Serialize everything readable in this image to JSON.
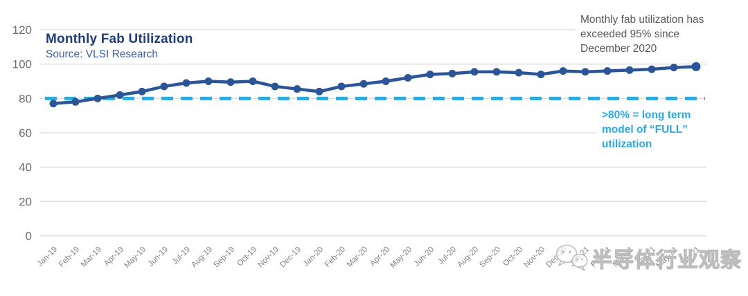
{
  "chart_data": {
    "type": "line",
    "title": "Monthly Fab Utilization",
    "subtitle": "Source: VLSI Research",
    "xlabel": "",
    "ylabel": "",
    "ylim": [
      0,
      120
    ],
    "yticks": [
      0,
      20,
      40,
      60,
      80,
      100,
      120
    ],
    "grid": "horizontal",
    "legend": "none",
    "categories": [
      "Jan-19",
      "Feb-19",
      "Mar-19",
      "Apr-19",
      "May-19",
      "Jun-19",
      "Jul-19",
      "Aug-19",
      "Sep-19",
      "Oct-19",
      "Nov-19",
      "Dec-19",
      "Jan-20",
      "Feb-20",
      "Mar-20",
      "Apr-20",
      "May-20",
      "Jun-20",
      "Jul-20",
      "Aug-20",
      "Sep-20",
      "Oct-20",
      "Nov-20",
      "Dec-20",
      "Jan-21",
      "Feb-21",
      "Mar-21",
      "Apr-21",
      "May-21",
      "Jun-21"
    ],
    "series": [
      {
        "name": "Monthly fab utilization (%)",
        "color": "#2B5597",
        "values": [
          77,
          78,
          80,
          82,
          84,
          87,
          89,
          90,
          89.5,
          90,
          87,
          85.5,
          84,
          87,
          88.5,
          90,
          92,
          94,
          94.5,
          95.5,
          95.5,
          95,
          94,
          96,
          95.5,
          96,
          96.5,
          97,
          98,
          98.5
        ]
      }
    ],
    "reference_line": {
      "value": 80,
      "style": "dashed",
      "color": "#29ABE2",
      "label": ">80% = long term model of “FULL” utilization"
    }
  },
  "annotations": {
    "exceeded_note": {
      "lines": [
        "Monthly fab utilization has",
        "exceeded 95% since",
        "December 2020"
      ],
      "color": "#58595B"
    },
    "full_note": {
      "lines": [
        ">80% = long term",
        "model of “FULL”",
        "utilization"
      ],
      "color": "#29ABE2"
    }
  },
  "watermark": {
    "icon": "wechat-icon",
    "text": "半导体行业观察"
  },
  "colors": {
    "series_line": "#2B5597",
    "reference_dashed": "#29ABE2",
    "title": "#1F3D7C",
    "subtitle": "#3E5EA9",
    "gridline": "#DADBDC",
    "y_tick_label": "#6D6E71",
    "x_tick_label": "#808285",
    "note_gray": "#58595B"
  }
}
